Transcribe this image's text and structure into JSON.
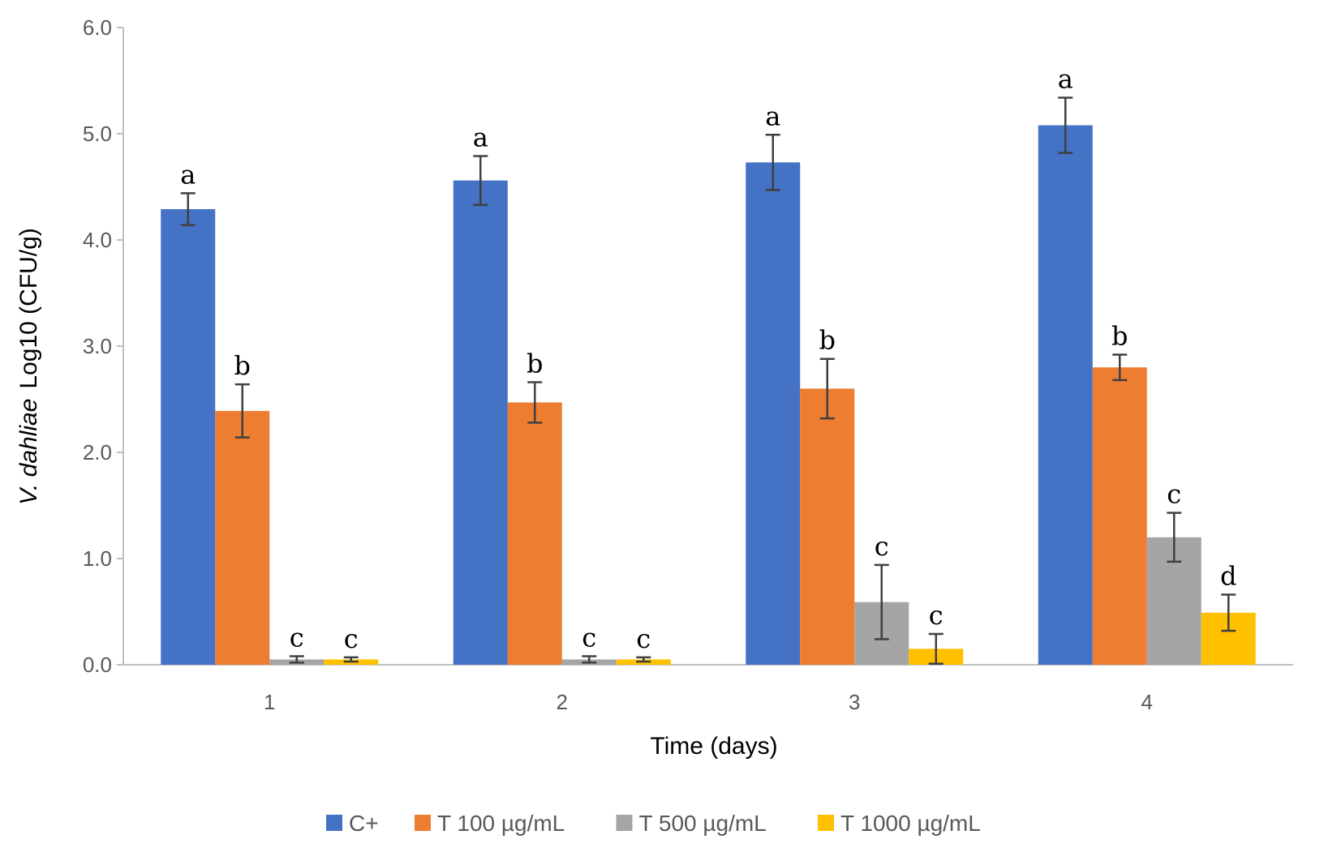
{
  "chart_data": {
    "type": "bar",
    "title": "",
    "xlabel": "Time (days)",
    "ylabel": {
      "species": "V. dahliae",
      "unit": "Log10 (CFU/g)"
    },
    "categories": [
      "1",
      "2",
      "3",
      "4"
    ],
    "ylim": [
      0,
      6
    ],
    "yticks": [
      "0.0",
      "1.0",
      "2.0",
      "3.0",
      "4.0",
      "5.0",
      "6.0"
    ],
    "grid": false,
    "legend_position": "bottom",
    "series": [
      {
        "name": "C+",
        "color": "#4472C4",
        "values": [
          4.29,
          4.56,
          4.73,
          5.08
        ],
        "errors": [
          0.15,
          0.23,
          0.26,
          0.26
        ],
        "labels": [
          "a",
          "a",
          "a",
          "a"
        ]
      },
      {
        "name": "T 100 µg/mL",
        "color": "#ED7D31",
        "values": [
          2.39,
          2.47,
          2.6,
          2.8
        ],
        "errors": [
          0.25,
          0.19,
          0.28,
          0.12
        ],
        "labels": [
          "b",
          "b",
          "b",
          "b"
        ]
      },
      {
        "name": "T 500 µg/mL",
        "color": "#A5A5A5",
        "values": [
          0.05,
          0.05,
          0.59,
          1.2
        ],
        "errors": [
          0.03,
          0.03,
          0.35,
          0.23
        ],
        "labels": [
          "c",
          "c",
          "c",
          "c"
        ]
      },
      {
        "name": "T 1000 µg/mL",
        "color": "#FFC000",
        "values": [
          0.05,
          0.05,
          0.15,
          0.49
        ],
        "errors": [
          0.02,
          0.02,
          0.14,
          0.17
        ],
        "labels": [
          "c",
          "c",
          "c",
          "d"
        ]
      }
    ]
  }
}
